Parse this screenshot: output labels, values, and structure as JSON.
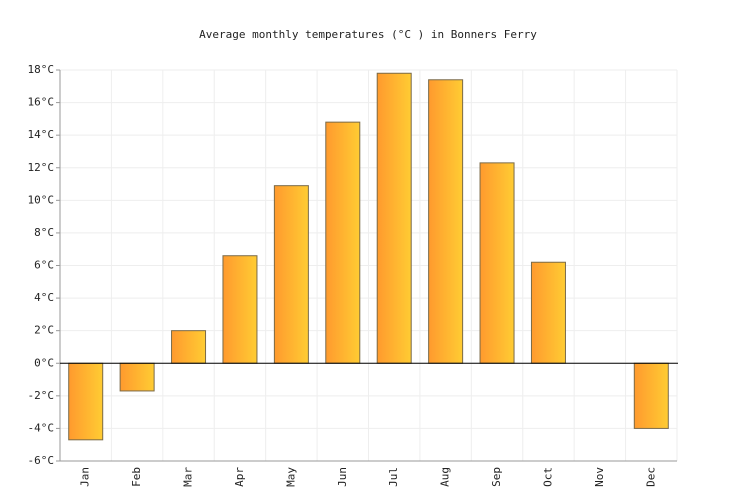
{
  "chart_data": {
    "type": "bar",
    "title": "Average monthly temperatures (°C ) in Bonners Ferry",
    "categories": [
      "Jan",
      "Feb",
      "Mar",
      "Apr",
      "May",
      "Jun",
      "Jul",
      "Aug",
      "Sep",
      "Oct",
      "Nov",
      "Dec"
    ],
    "values": [
      -4.7,
      -1.7,
      2.0,
      6.6,
      10.9,
      14.8,
      17.8,
      17.4,
      12.3,
      6.2,
      0,
      -4.0
    ],
    "color": "#ffb02e",
    "ylim": [
      -6,
      18
    ],
    "yticks": [
      {
        "value": -6,
        "label": "-6°C"
      },
      {
        "value": -4,
        "label": "-4°C"
      },
      {
        "value": -2,
        "label": "-2°C"
      },
      {
        "value": 0,
        "label": "0°C"
      },
      {
        "value": 2,
        "label": "2°C"
      },
      {
        "value": 4,
        "label": "4°C"
      },
      {
        "value": 6,
        "label": "6°C"
      },
      {
        "value": 8,
        "label": "8°C"
      },
      {
        "value": 10,
        "label": "10°C"
      },
      {
        "value": 12,
        "label": "12°C"
      },
      {
        "value": 14,
        "label": "14°C"
      },
      {
        "value": 16,
        "label": "16°C"
      },
      {
        "value": 18,
        "label": "18°C"
      }
    ],
    "grid": true
  }
}
